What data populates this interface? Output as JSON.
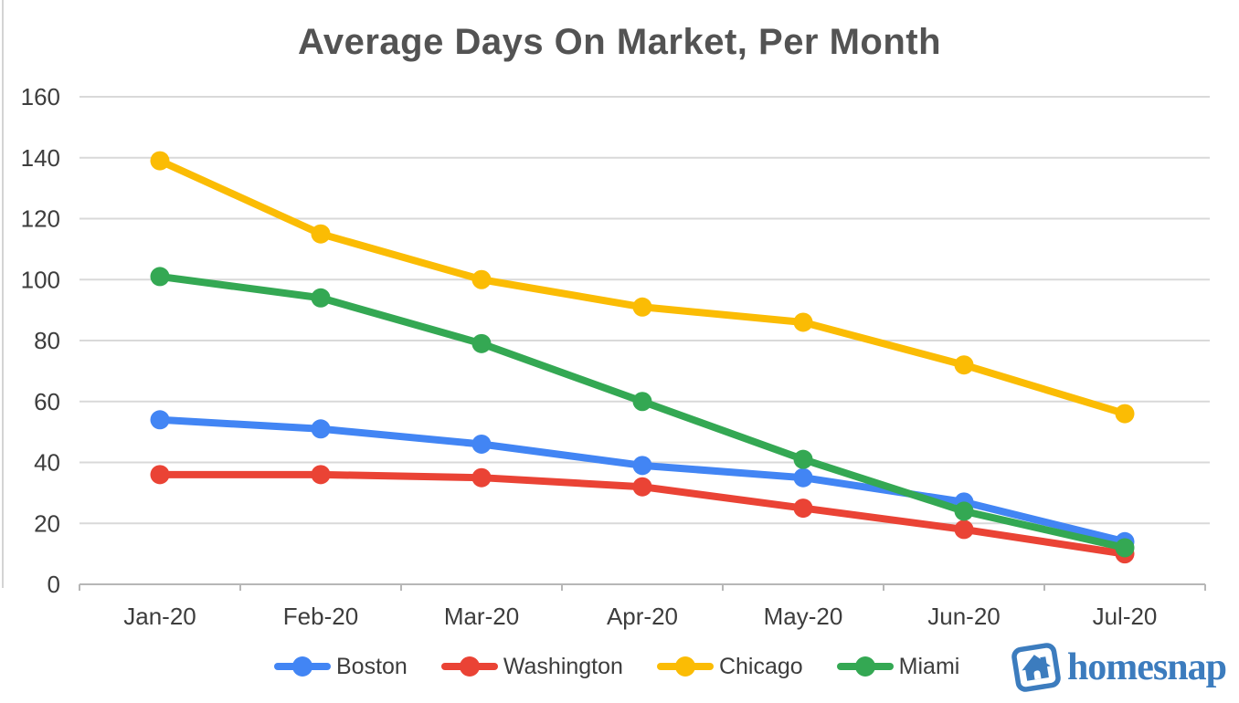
{
  "title": "Average Days On Market, Per Month",
  "chart_data": {
    "type": "line",
    "title": "Average Days On Market, Per Month",
    "categories": [
      "Jan-20",
      "Feb-20",
      "Mar-20",
      "Apr-20",
      "May-20",
      "Jun-20",
      "Jul-20"
    ],
    "series": [
      {
        "name": "Boston",
        "color": "#4285F4",
        "values": [
          54,
          51,
          46,
          39,
          35,
          27,
          14
        ]
      },
      {
        "name": "Washington",
        "color": "#EA4335",
        "values": [
          36,
          36,
          35,
          32,
          25,
          18,
          10
        ]
      },
      {
        "name": "Chicago",
        "color": "#FBBC04",
        "values": [
          139,
          115,
          100,
          91,
          86,
          72,
          56
        ]
      },
      {
        "name": "Miami",
        "color": "#34A853",
        "values": [
          101,
          94,
          79,
          60,
          41,
          24,
          12
        ]
      }
    ],
    "xlabel": "",
    "ylabel": "",
    "ylim": [
      0,
      160
    ],
    "y_tick_step": 20,
    "y_tick_labels": [
      "0",
      "20",
      "40",
      "60",
      "80",
      "100",
      "120",
      "140",
      "160"
    ],
    "grid": true,
    "legend_position": "bottom"
  },
  "branding": {
    "logo_text": "homesnap"
  },
  "colors": {
    "gridline": "#d9d9d9",
    "axis": "#b7b7b7",
    "label": "#3d3d3d",
    "title": "#535353",
    "logo_blue": "#3c7cbe"
  }
}
